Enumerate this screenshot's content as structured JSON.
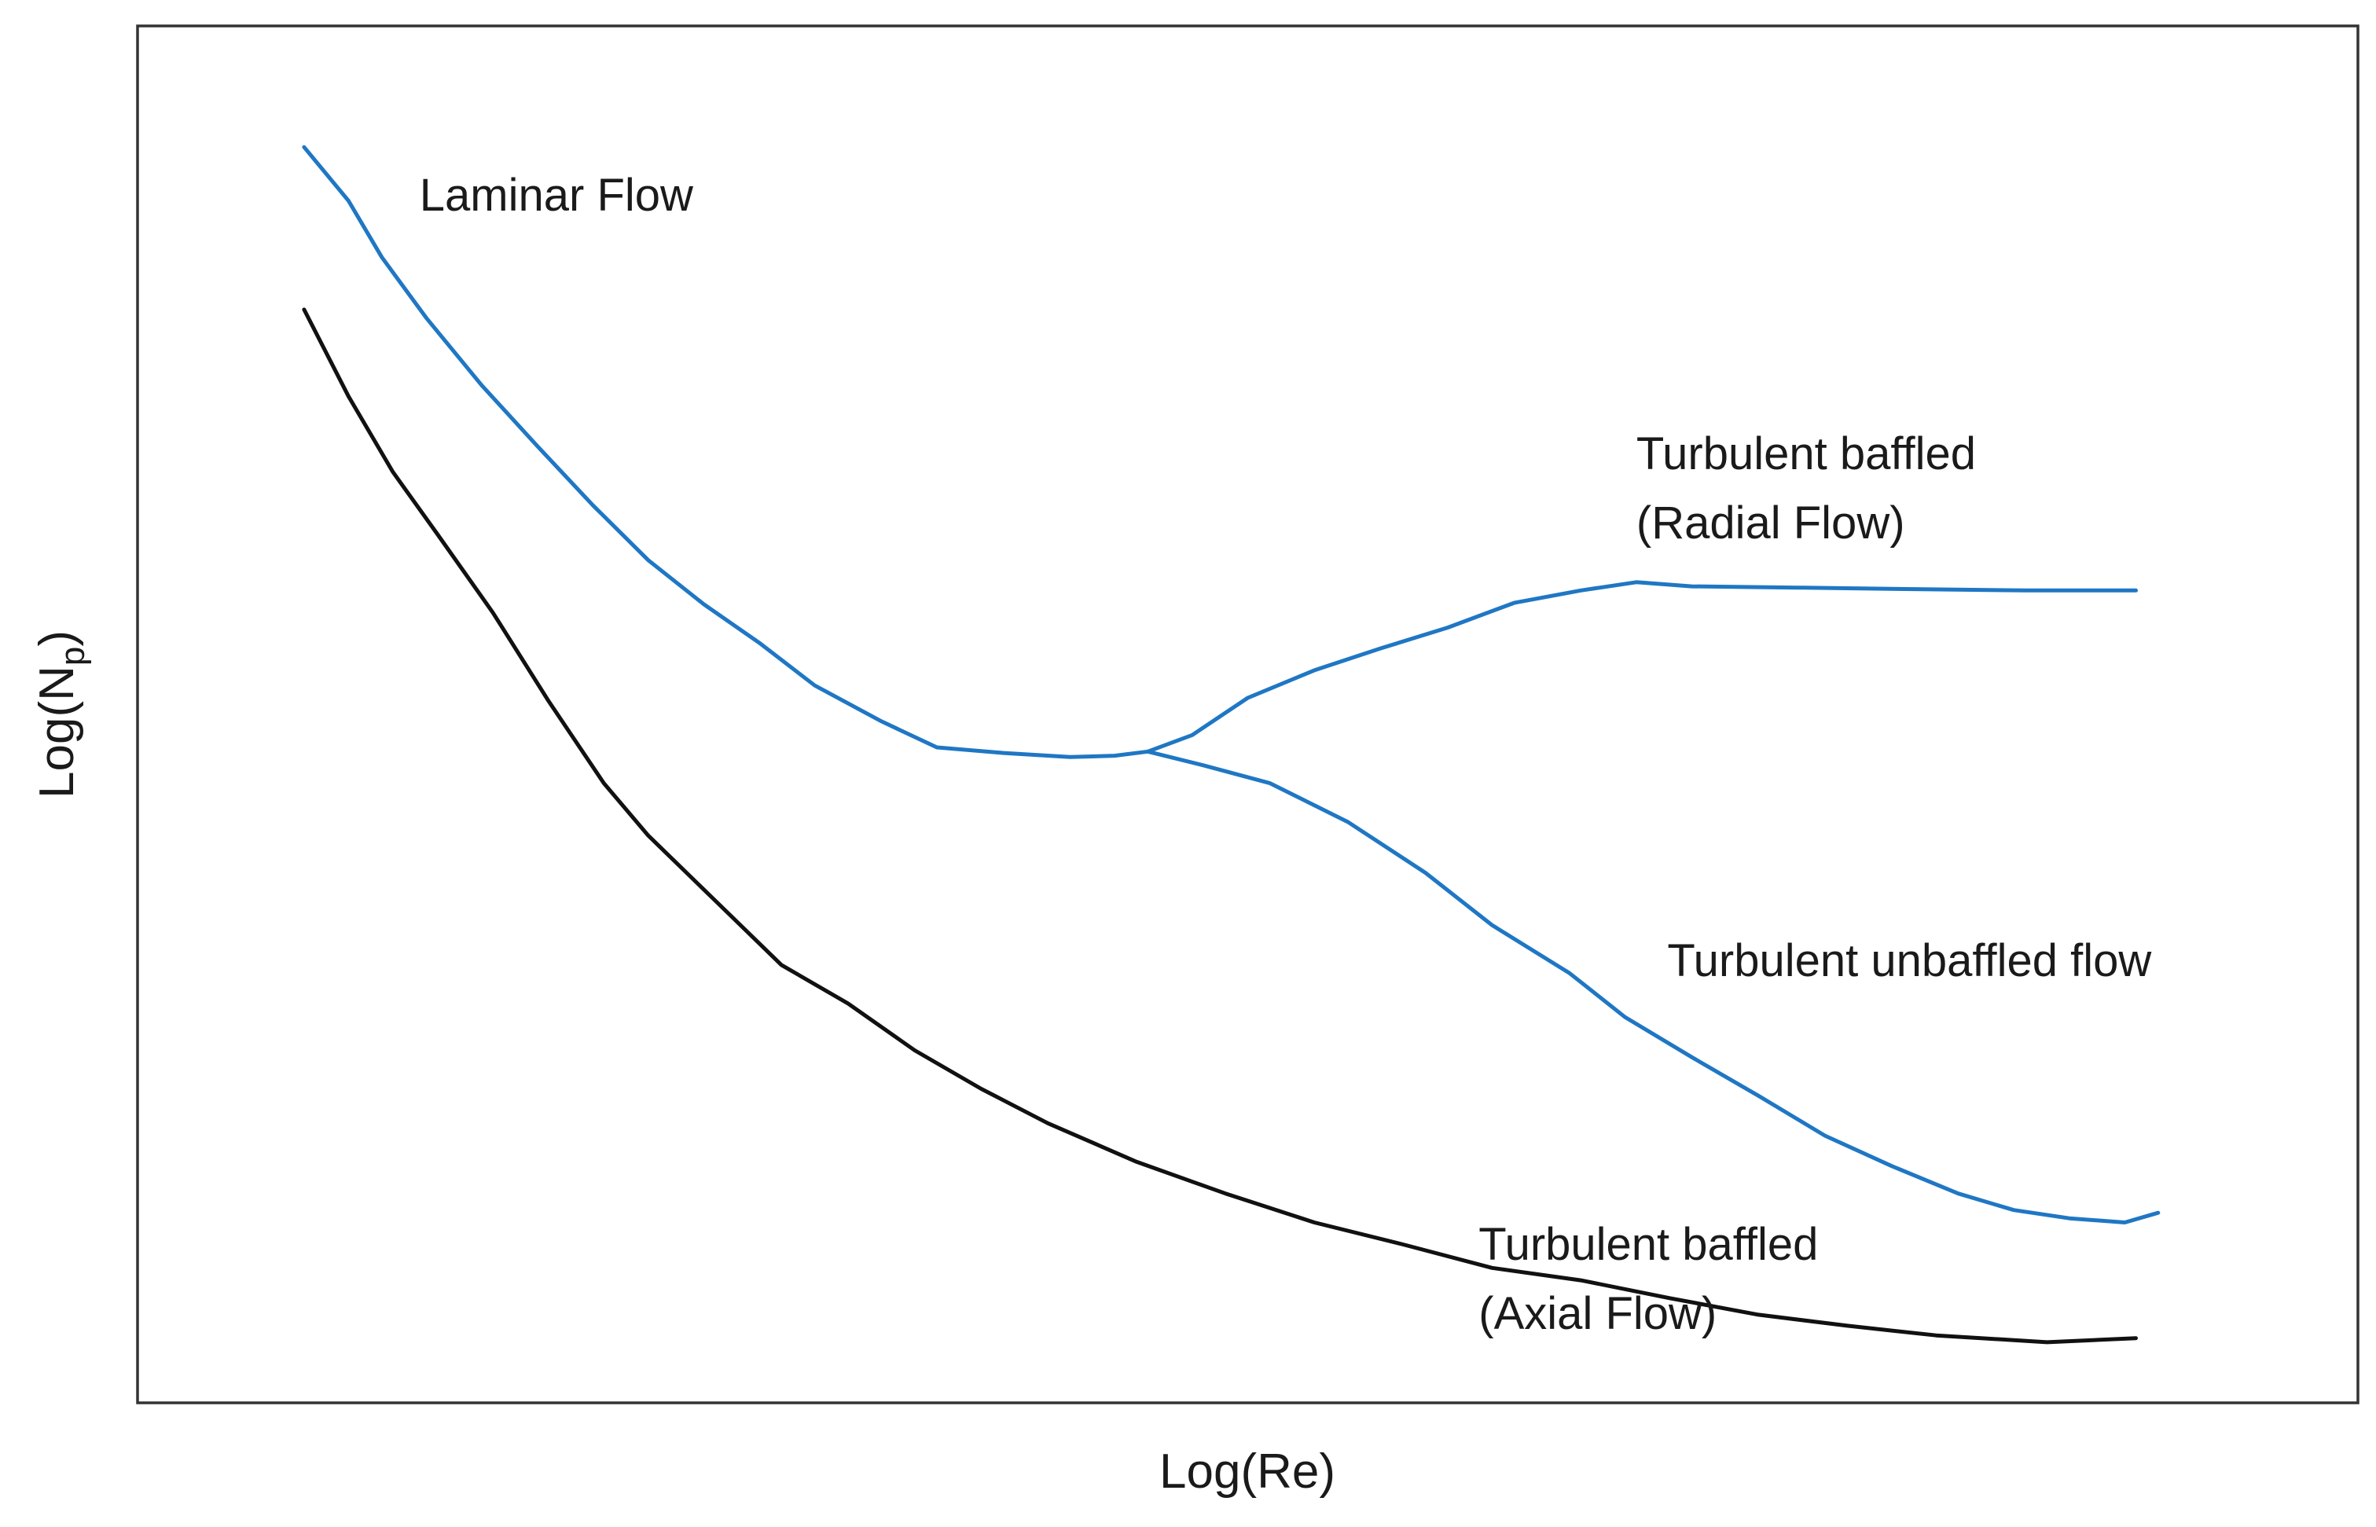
{
  "chart_data": {
    "type": "line",
    "title": "",
    "xlabel": "Log(Re)",
    "ylabel_main": "Log(N",
    "ylabel_sub": "p",
    "ylabel_end": ")",
    "xlim": [
      0,
      1
    ],
    "ylim": [
      0,
      1
    ],
    "grid": false,
    "legend": "none",
    "colors": {
      "blue": "#1f77c4",
      "black": "#111111",
      "axes": "#333333"
    },
    "annotations": [
      {
        "name": "laminar-flow-label",
        "lines": [
          "Laminar Flow"
        ],
        "x": 0.127,
        "y": 0.866
      },
      {
        "name": "radial-flow-label",
        "lines": [
          "Turbulent baffled",
          "(Radial Flow)"
        ],
        "x": 0.675,
        "y": 0.678
      },
      {
        "name": "unbaffled-flow-label",
        "lines": [
          "Turbulent unbaffled flow"
        ],
        "x": 0.689,
        "y": 0.31
      },
      {
        "name": "axial-flow-label",
        "lines": [
          "Turbulent baffled",
          "(Axial Flow)"
        ],
        "x": 0.604,
        "y": 0.104
      }
    ],
    "series": [
      {
        "key": "blue-laminar",
        "color": "blue",
        "x": [
          0.075,
          0.095,
          0.11,
          0.13,
          0.155,
          0.18,
          0.205,
          0.23,
          0.255,
          0.28,
          0.305,
          0.335,
          0.36,
          0.39,
          0.42,
          0.44,
          0.455
        ],
        "y": [
          0.912,
          0.873,
          0.832,
          0.788,
          0.739,
          0.695,
          0.652,
          0.612,
          0.58,
          0.552,
          0.521,
          0.495,
          0.476,
          0.472,
          0.469,
          0.47,
          0.473
        ]
      },
      {
        "key": "blue-radial",
        "color": "blue",
        "x": [
          0.455,
          0.475,
          0.5,
          0.53,
          0.56,
          0.59,
          0.62,
          0.65,
          0.675,
          0.7,
          0.75,
          0.8,
          0.85,
          0.9
        ],
        "y": [
          0.473,
          0.485,
          0.512,
          0.532,
          0.548,
          0.563,
          0.581,
          0.59,
          0.596,
          0.593,
          0.592,
          0.591,
          0.59,
          0.59
        ]
      },
      {
        "key": "blue-unbaffled",
        "color": "blue",
        "x": [
          0.455,
          0.48,
          0.51,
          0.545,
          0.58,
          0.61,
          0.645,
          0.67,
          0.7,
          0.73,
          0.76,
          0.79,
          0.82,
          0.845,
          0.87,
          0.895,
          0.91
        ],
        "y": [
          0.473,
          0.463,
          0.45,
          0.422,
          0.385,
          0.347,
          0.312,
          0.28,
          0.251,
          0.223,
          0.194,
          0.172,
          0.152,
          0.14,
          0.134,
          0.131,
          0.138
        ]
      },
      {
        "key": "black-axial",
        "color": "black",
        "x": [
          0.075,
          0.095,
          0.115,
          0.135,
          0.16,
          0.185,
          0.21,
          0.23,
          0.26,
          0.29,
          0.32,
          0.35,
          0.38,
          0.41,
          0.45,
          0.49,
          0.53,
          0.57,
          0.61,
          0.65,
          0.69,
          0.73,
          0.77,
          0.81,
          0.86,
          0.9
        ],
        "y": [
          0.794,
          0.731,
          0.676,
          0.631,
          0.574,
          0.51,
          0.45,
          0.412,
          0.365,
          0.318,
          0.29,
          0.256,
          0.228,
          0.203,
          0.175,
          0.152,
          0.131,
          0.115,
          0.098,
          0.089,
          0.076,
          0.064,
          0.056,
          0.049,
          0.044,
          0.047
        ]
      }
    ]
  }
}
